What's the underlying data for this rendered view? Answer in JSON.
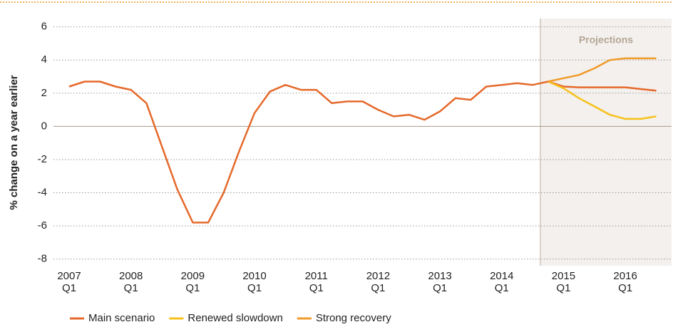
{
  "chart_data": {
    "type": "line",
    "y_label": "% change on a year earlier",
    "categories": [
      "2007 Q1",
      null,
      null,
      null,
      "2008 Q1",
      null,
      null,
      null,
      "2009 Q1",
      null,
      null,
      null,
      "2010 Q1",
      null,
      null,
      null,
      "2011 Q1",
      null,
      null,
      null,
      "2012 Q1",
      null,
      null,
      null,
      "2013 Q1",
      null,
      null,
      null,
      "2014 Q1",
      null,
      null,
      null,
      "2015 Q1",
      null,
      null,
      null,
      "2016 Q1",
      null,
      null
    ],
    "series": [
      {
        "name": "Main scenario",
        "color": "#e5692b",
        "values": [
          2.4,
          2.7,
          2.7,
          2.4,
          2.2,
          1.4,
          -1.2,
          -3.8,
          -5.8,
          -5.8,
          -4.0,
          -1.5,
          0.8,
          2.1,
          2.5,
          2.2,
          2.2,
          1.4,
          1.5,
          1.5,
          1.0,
          0.6,
          0.7,
          0.4,
          0.9,
          1.7,
          1.6,
          2.4,
          2.5,
          2.6,
          2.5,
          2.7,
          2.4,
          2.35,
          2.35,
          2.35,
          2.35,
          2.25,
          2.15
        ]
      },
      {
        "name": "Renewed slowdown",
        "color": "#f7c11b",
        "values": [
          null,
          null,
          null,
          null,
          null,
          null,
          null,
          null,
          null,
          null,
          null,
          null,
          null,
          null,
          null,
          null,
          null,
          null,
          null,
          null,
          null,
          null,
          null,
          null,
          null,
          null,
          null,
          null,
          null,
          null,
          null,
          2.7,
          2.3,
          1.7,
          1.2,
          0.7,
          0.45,
          0.45,
          0.6
        ]
      },
      {
        "name": "Strong recovery",
        "color": "#f09a2a",
        "values": [
          null,
          null,
          null,
          null,
          null,
          null,
          null,
          null,
          null,
          null,
          null,
          null,
          null,
          null,
          null,
          null,
          null,
          null,
          null,
          null,
          null,
          null,
          null,
          null,
          null,
          null,
          null,
          null,
          null,
          null,
          null,
          2.7,
          2.9,
          3.1,
          3.5,
          4.0,
          4.1,
          4.1,
          4.1
        ]
      }
    ],
    "annotation": {
      "text": "Projections",
      "x_from": 30.5
    },
    "ylim": [
      -8.4,
      6.5
    ],
    "yticks": [
      -8,
      -6,
      -4,
      -2,
      0,
      2,
      4,
      6
    ],
    "grid": true
  }
}
